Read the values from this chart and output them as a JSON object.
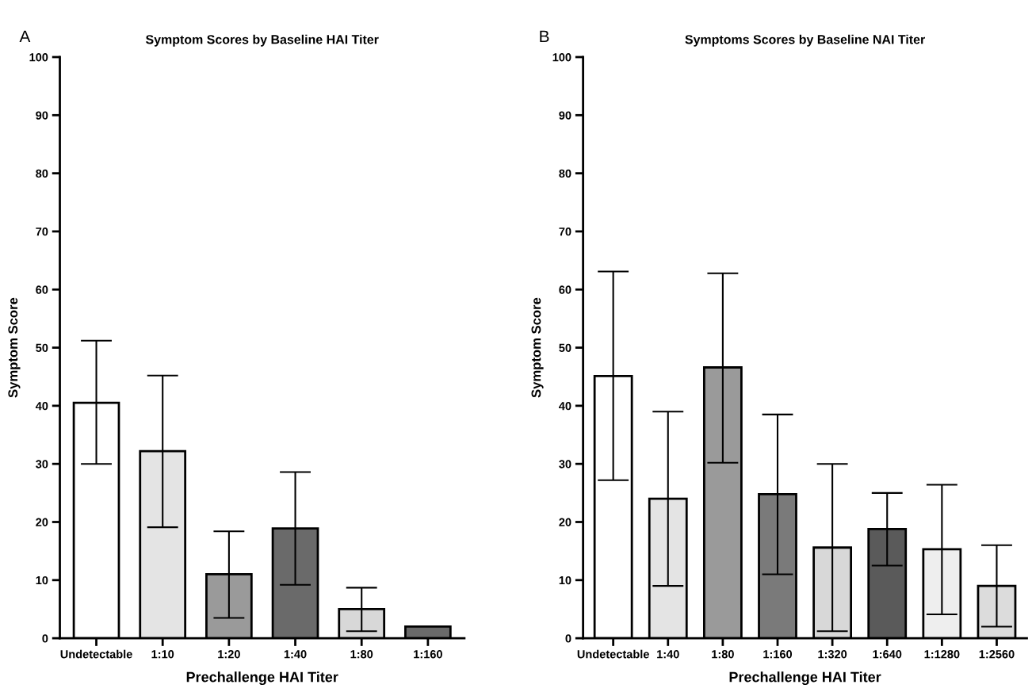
{
  "chart_data": [
    {
      "type": "bar",
      "title": "Symptom Scores by Baseline HAI Titer",
      "xlabel": "Prechallenge HAI Titer",
      "ylabel": "Symptom Score",
      "annotations": [
        "A"
      ],
      "categories": [
        "Undetectable",
        "1:10",
        "1:20",
        "1:40",
        "1:80",
        "1:160"
      ],
      "values": [
        40.5,
        32.2,
        11,
        18.9,
        5,
        2
      ],
      "errors": [
        [
          30,
          51.2
        ],
        [
          19.1,
          45.2
        ],
        [
          3.5,
          18.4
        ],
        [
          9.2,
          28.6
        ],
        [
          1.2,
          8.7
        ],
        null
      ],
      "colors": [
        "#ffffff",
        "#e4e4e4",
        "#9a9a9a",
        "#6a6a6a",
        "#d8d8d8",
        "#6a6a6a"
      ],
      "ylim": [
        0,
        100
      ],
      "yticks": [
        0,
        10,
        20,
        30,
        40,
        50,
        60,
        70,
        80,
        90,
        100
      ],
      "grid": false,
      "legend": false
    },
    {
      "type": "bar",
      "title": "Symptoms Scores by Baseline NAI Titer",
      "xlabel": "Prechallenge HAI Titer",
      "ylabel": "Symptom Score",
      "annotations": [
        "B"
      ],
      "categories": [
        "Undetectable",
        "1:40",
        "1:80",
        "1:160",
        "1:320",
        "1:640",
        "1:1280",
        "1:2560"
      ],
      "values": [
        45.1,
        24,
        46.6,
        24.8,
        15.6,
        18.8,
        15.3,
        9
      ],
      "errors": [
        [
          27.2,
          63.1
        ],
        [
          9,
          39
        ],
        [
          30.2,
          62.8
        ],
        [
          11,
          38.5
        ],
        [
          1.2,
          30
        ],
        [
          12.5,
          25
        ],
        [
          4.1,
          26.4
        ],
        [
          2,
          16
        ]
      ],
      "colors": [
        "#ffffff",
        "#e4e4e4",
        "#9a9a9a",
        "#7a7a7a",
        "#d8d8d8",
        "#5a5a5a",
        "#eeeeee",
        "#dcdcdc"
      ],
      "ylim": [
        0,
        100
      ],
      "yticks": [
        0,
        10,
        20,
        30,
        40,
        50,
        60,
        70,
        80,
        90,
        100
      ],
      "grid": false,
      "legend": false
    }
  ]
}
